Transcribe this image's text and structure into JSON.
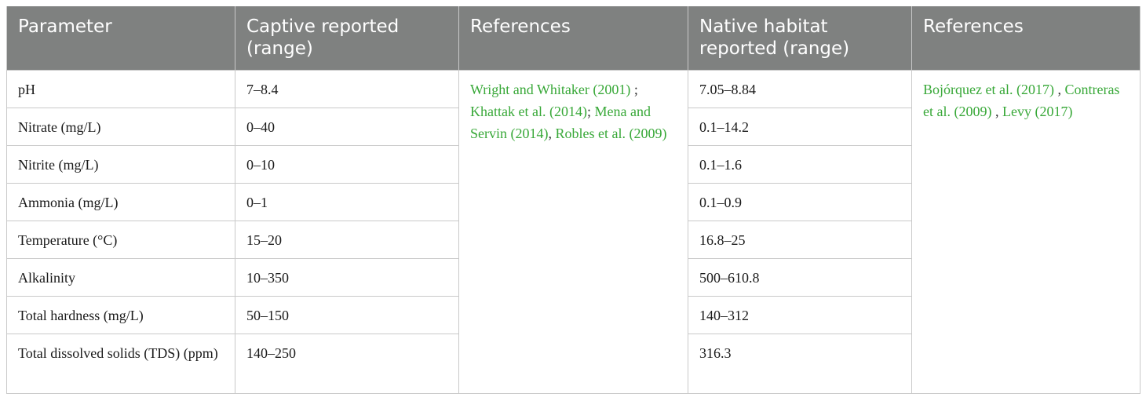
{
  "table": {
    "headers": [
      "Parameter",
      "Captive reported (range)",
      "References",
      "Native habitat reported (range)",
      "References"
    ],
    "rows": [
      {
        "parameter": "pH",
        "captive": "7–8.4",
        "native": "7.05–8.84"
      },
      {
        "parameter": "Nitrate (mg/L)",
        "captive": "0–40",
        "native": "0.1–14.2"
      },
      {
        "parameter": "Nitrite (mg/L)",
        "captive": "0–10",
        "native": "0.1–1.6"
      },
      {
        "parameter": "Ammonia (mg/L)",
        "captive": "0–1",
        "native": "0.1–0.9"
      },
      {
        "parameter": "Temperature (°C)",
        "captive": "15–20",
        "native": "16.8–25"
      },
      {
        "parameter": "Alkalinity",
        "captive": "10–350",
        "native": "500–610.8"
      },
      {
        "parameter": "Total hardness (mg/L)",
        "captive": "50–150",
        "native": "140–312"
      },
      {
        "parameter": "Total dissolved solids (TDS) (ppm)",
        "captive": "140–250",
        "native": "316.3"
      }
    ],
    "captive_references": {
      "ref1": "Wright and Whitaker (2001)",
      "sep1": " ;",
      "ref2": "Khattak et al. (2014)",
      "sep2": "; ",
      "ref3": "Mena and Servin (2014)",
      "sep3": ", ",
      "ref4": "Robles et al. (2009)"
    },
    "native_references": {
      "ref1": "Bojórquez et al. (2017)",
      "sep1": " ,",
      "ref2": "Contreras et al. (2009)",
      "sep2": " ,",
      "ref3": "Levy (2017)"
    }
  }
}
